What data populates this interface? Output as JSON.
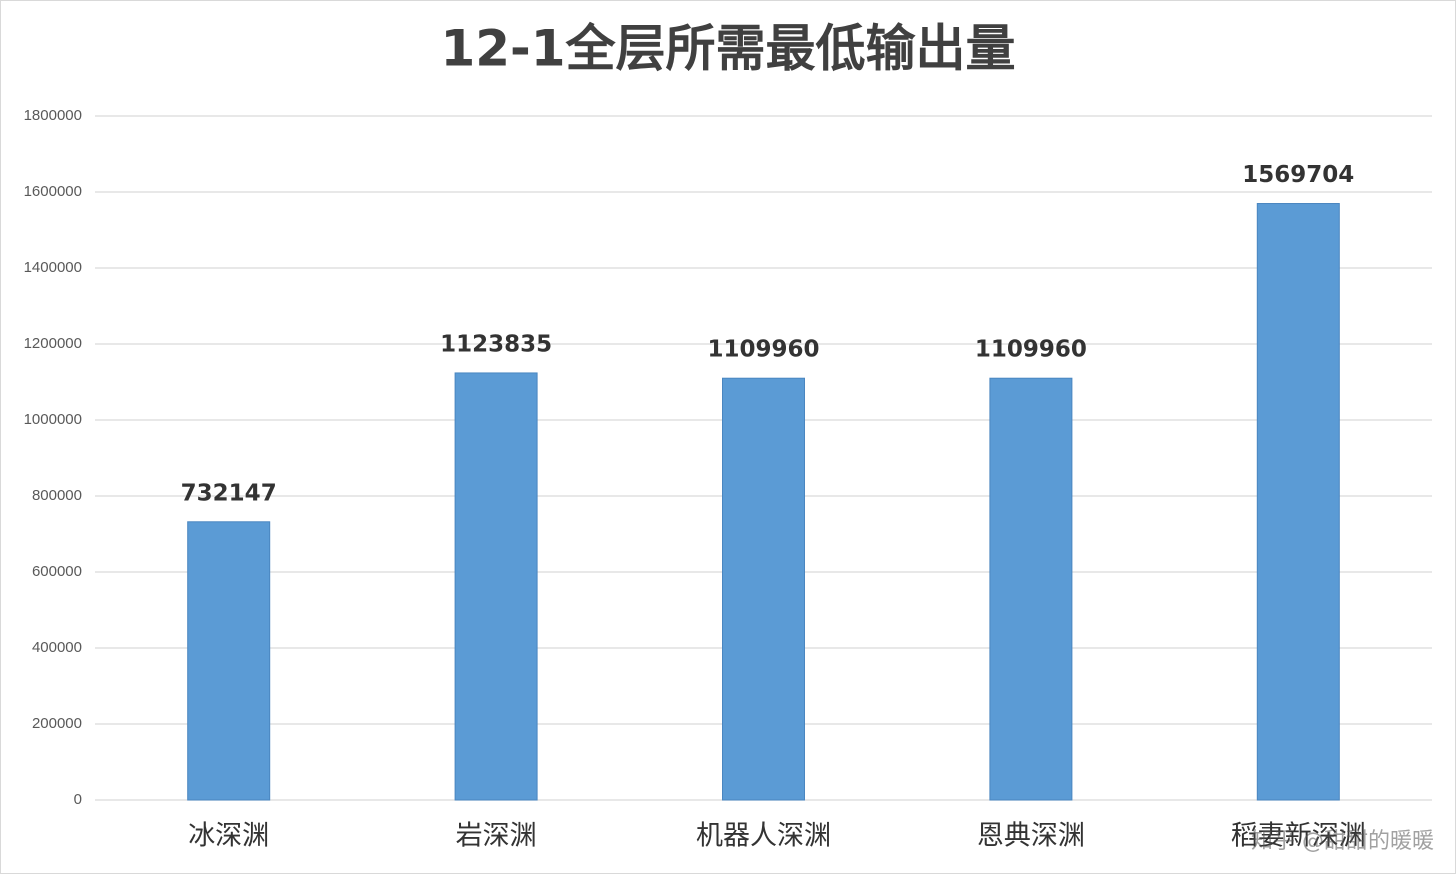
{
  "chart_data": {
    "type": "bar",
    "title": "12-1全层所需最低输出量",
    "categories": [
      "冰深渊",
      "岩深渊",
      "机器人深渊",
      "恩典深渊",
      "稻妻新深渊"
    ],
    "values": [
      732147,
      1123835,
      1109960,
      1109960,
      1569704
    ],
    "color": "#5b9bd5",
    "ylim": [
      0,
      1800000
    ],
    "yticks": [
      0,
      200000,
      400000,
      600000,
      800000,
      1000000,
      1200000,
      1400000,
      1600000,
      1800000
    ],
    "grid": true,
    "watermark": "知乎 @甜甜的暖暖"
  }
}
